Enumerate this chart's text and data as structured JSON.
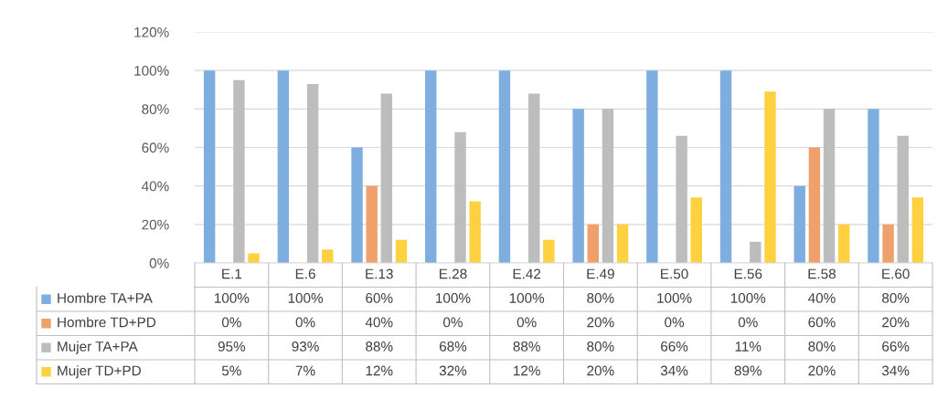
{
  "chart_data": {
    "type": "bar",
    "categories": [
      "E.1",
      "E.6",
      "E.13",
      "E.28",
      "E.42",
      "E.49",
      "E.50",
      "E.56",
      "E.58",
      "E.60"
    ],
    "series": [
      {
        "name": "Hombre TA+PA",
        "color": "#7eaee0",
        "values": [
          100,
          100,
          60,
          100,
          100,
          80,
          100,
          100,
          40,
          80
        ],
        "value_labels": [
          "100%",
          "100%",
          "60%",
          "100%",
          "100%",
          "80%",
          "100%",
          "100%",
          "40%",
          "80%"
        ]
      },
      {
        "name": "Hombre TD+PD",
        "color": "#f0a06a",
        "values": [
          0,
          0,
          40,
          0,
          0,
          20,
          0,
          0,
          60,
          20
        ],
        "value_labels": [
          "0%",
          "0%",
          "40%",
          "0%",
          "0%",
          "20%",
          "0%",
          "0%",
          "60%",
          "20%"
        ]
      },
      {
        "name": "Mujer TA+PA",
        "color": "#bdbdbd",
        "values": [
          95,
          93,
          88,
          68,
          88,
          80,
          66,
          11,
          80,
          66
        ],
        "value_labels": [
          "95%",
          "93%",
          "88%",
          "68%",
          "88%",
          "80%",
          "66%",
          "11%",
          "80%",
          "66%"
        ]
      },
      {
        "name": "Mujer TD+PD",
        "color": "#ffd140",
        "values": [
          5,
          7,
          12,
          32,
          12,
          20,
          34,
          89,
          20,
          34
        ],
        "value_labels": [
          "5%",
          "7%",
          "12%",
          "32%",
          "12%",
          "20%",
          "34%",
          "89%",
          "20%",
          "34%"
        ]
      }
    ],
    "ylim": [
      0,
      120
    ],
    "yticks": [
      {
        "value": 0,
        "label": "0%"
      },
      {
        "value": 20,
        "label": "20%"
      },
      {
        "value": 40,
        "label": "40%"
      },
      {
        "value": 60,
        "label": "60%"
      },
      {
        "value": 80,
        "label": "80%"
      },
      {
        "value": 100,
        "label": "100%"
      },
      {
        "value": 120,
        "label": "120%"
      }
    ],
    "grid": "y",
    "legend": "bottom"
  }
}
